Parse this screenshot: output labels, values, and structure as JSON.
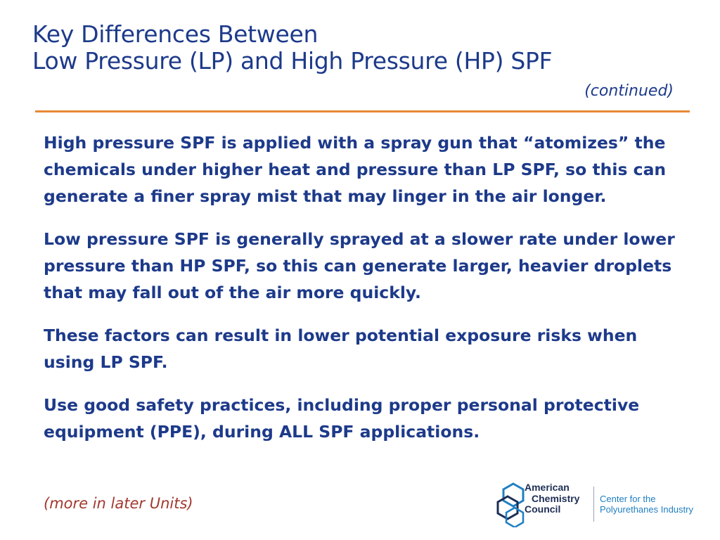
{
  "title": {
    "line1": "Key Differences Between",
    "line2": "Low Pressure (LP) and High Pressure (HP) SPF"
  },
  "subtitle": "(continued)",
  "paragraphs": [
    "High pressure SPF is applied with a spray gun that “atomizes” the chemicals under higher heat and pressure than LP SPF, so this can generate a finer spray mist that may linger in the air longer.",
    "Low pressure SPF is generally sprayed at a slower rate under lower pressure than HP SPF, so this can generate larger, heavier droplets that may fall out of the air more quickly.",
    "These factors can result in lower potential exposure risks when using LP SPF.",
    "Use good safety practices, including proper personal protective equipment (PPE), during ALL SPF applications."
  ],
  "footer_note": "(more in later Units)",
  "logo": {
    "org_line1": "American",
    "org_line2": "Chemistry",
    "org_line3": "Council",
    "center_line1": "Center for the",
    "center_line2": "Polyurethanes Industry",
    "icon": "acc-hexagon-logo-icon"
  },
  "colors": {
    "title": "#1d3a8a",
    "rule": "#e88a35",
    "note": "#a1392e",
    "logo_dark": "#1d2e55",
    "logo_blue": "#1f7fc2"
  }
}
